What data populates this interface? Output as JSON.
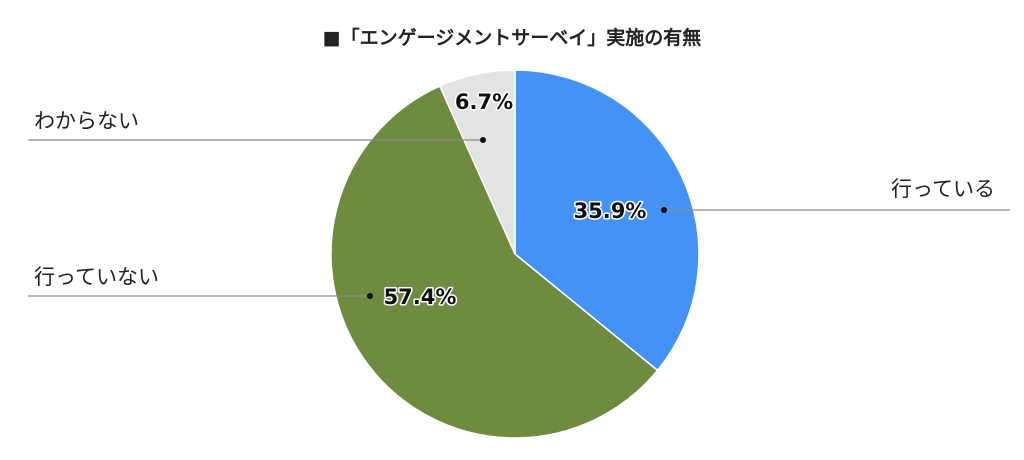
{
  "chart_data": {
    "type": "pie",
    "title": "■「エンゲージメントサーベイ」実施の有無",
    "categories": [
      "行っている",
      "行っていない",
      "わからない"
    ],
    "values": [
      35.9,
      57.4,
      6.7
    ],
    "value_labels": [
      "35.9%",
      "57.4%",
      "6.7%"
    ],
    "colors": [
      "#4592f7",
      "#6f8b3f",
      "#e3e3e3"
    ],
    "start_angle_deg": 0,
    "direction": "clockwise",
    "legend": "none"
  }
}
